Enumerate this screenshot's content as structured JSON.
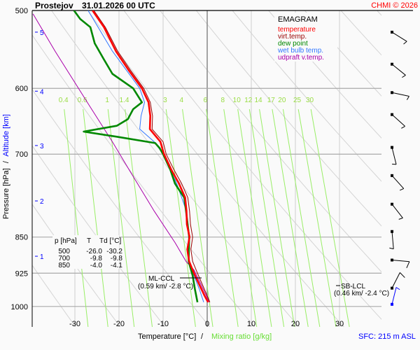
{
  "header": {
    "station": "Prostejov",
    "datetime": "31.01.2026 00 UTC",
    "copyright": "CHMI © 2026"
  },
  "legend": {
    "title": "EMAGRAM",
    "items": [
      {
        "label": "temperature",
        "color": "#ff0000"
      },
      {
        "label": "virt.temp.",
        "color": "#990000"
      },
      {
        "label": "dew point",
        "color": "#008800"
      },
      {
        "label": "wet bulb temp.",
        "color": "#3377ff"
      },
      {
        "label": "udpraft v.temp.",
        "color": "#aa00aa"
      }
    ]
  },
  "axes": {
    "ylabel_pressure": "Pressure [hPa]",
    "ylabel_sep": "/",
    "ylabel_altitude": "Altitude [km]",
    "xlabel_temp": "Temperature [°C]",
    "xlabel_sep": "/",
    "xlabel_mixing": "Mixing ratio [g/kg]",
    "sfc": "SFC: 215 m ASL"
  },
  "table": {
    "headers": [
      "p [hPa]",
      "T",
      "Td [°C]"
    ],
    "rows": [
      [
        "500",
        "-26.0",
        "-30.2"
      ],
      [
        "700",
        "-9.8",
        "-9.8"
      ],
      [
        "850",
        "-4.0",
        "-4.1"
      ]
    ]
  },
  "annotations": {
    "ml_ccl": {
      "label": "ML-CCL",
      "detail": "(0.59 km/ -2.8 °C)",
      "p": 918
    },
    "sb_lcl": {
      "label": "SB-LCL",
      "detail": "(0.46 km/ -2.4 °C)",
      "p": 937
    }
  },
  "chart_data": {
    "type": "line",
    "title": "Prostejov 31.01.2026 00 UTC",
    "xlabel": "Temperature [°C]",
    "ylabel": "Pressure [hPa]",
    "xlim": [
      -39.7,
      39.5
    ],
    "ylim": [
      500,
      1049
    ],
    "yscale": "log",
    "x_ticks": [
      "-30",
      "-20",
      "-10",
      "0",
      "10",
      "20",
      "30"
    ],
    "x_tick_values": [
      -30,
      -20,
      -10,
      0,
      10,
      20,
      30
    ],
    "y_ticks": [
      "500",
      "600",
      "700",
      "850",
      "925",
      "1000"
    ],
    "y_tick_values": [
      500,
      600,
      700,
      850,
      925,
      1000
    ],
    "altitude_ticks": [
      {
        "km": "5",
        "p": 526
      },
      {
        "km": "4",
        "p": 604
      },
      {
        "km": "3",
        "p": 686
      },
      {
        "km": "2",
        "p": 781
      },
      {
        "km": "1",
        "p": 889
      }
    ],
    "mixing_ratio_labels": [
      "0.4",
      "0.6",
      "1",
      "1.4",
      "3",
      "4",
      "6",
      "8",
      "10",
      "12",
      "14",
      "17",
      "20",
      "25",
      "30"
    ],
    "mixing_ratio_values": [
      0.4,
      0.6,
      1,
      1.4,
      3,
      4,
      6,
      8,
      10,
      12,
      14,
      17,
      20,
      25,
      30
    ],
    "grid": true,
    "legend_position": "top-right",
    "series": [
      {
        "name": "temperature",
        "color": "#ff0000",
        "points": [
          [
            500,
            -26.0
          ],
          [
            520,
            -23.4
          ],
          [
            550,
            -20.7
          ],
          [
            575,
            -17.8
          ],
          [
            600,
            -14.8
          ],
          [
            620,
            -13.3
          ],
          [
            640,
            -12.9
          ],
          [
            660,
            -13.0
          ],
          [
            680,
            -10.6
          ],
          [
            700,
            -9.8
          ],
          [
            725,
            -8.2
          ],
          [
            750,
            -6.4
          ],
          [
            775,
            -5.0
          ],
          [
            800,
            -4.7
          ],
          [
            825,
            -4.6
          ],
          [
            850,
            -4.0
          ],
          [
            875,
            -4.5
          ],
          [
            900,
            -4.1
          ],
          [
            925,
            -3.0
          ],
          [
            950,
            -1.8
          ],
          [
            975,
            -0.6
          ],
          [
            990,
            0.2
          ]
        ]
      },
      {
        "name": "virt.temp.",
        "color": "#990000",
        "points": [
          [
            500,
            -25.7
          ],
          [
            520,
            -23.1
          ],
          [
            550,
            -20.3
          ],
          [
            575,
            -17.4
          ],
          [
            600,
            -14.4
          ],
          [
            620,
            -12.9
          ],
          [
            640,
            -12.4
          ],
          [
            660,
            -12.5
          ],
          [
            680,
            -10.0
          ],
          [
            700,
            -9.3
          ],
          [
            725,
            -7.6
          ],
          [
            750,
            -5.8
          ],
          [
            775,
            -4.4
          ],
          [
            800,
            -4.0
          ],
          [
            825,
            -3.8
          ],
          [
            850,
            -3.3
          ],
          [
            875,
            -3.7
          ],
          [
            900,
            -3.3
          ],
          [
            925,
            -2.2
          ],
          [
            950,
            -1.1
          ],
          [
            975,
            0.0
          ],
          [
            990,
            0.6
          ]
        ]
      },
      {
        "name": "dew point",
        "color": "#008800",
        "points": [
          [
            500,
            -30.2
          ],
          [
            510,
            -28.8
          ],
          [
            520,
            -26.5
          ],
          [
            540,
            -25.5
          ],
          [
            560,
            -23.5
          ],
          [
            580,
            -21.5
          ],
          [
            600,
            -16.8
          ],
          [
            620,
            -14.8
          ],
          [
            630,
            -16.8
          ],
          [
            645,
            -18.0
          ],
          [
            655,
            -20.5
          ],
          [
            664,
            -28.0
          ],
          [
            672,
            -20.5
          ],
          [
            682,
            -11.8
          ],
          [
            690,
            -10.8
          ],
          [
            700,
            -10.0
          ],
          [
            725,
            -8.4
          ],
          [
            750,
            -7.3
          ],
          [
            775,
            -5.2
          ],
          [
            800,
            -4.8
          ],
          [
            850,
            -4.1
          ],
          [
            900,
            -4.2
          ],
          [
            930,
            -3.3
          ],
          [
            960,
            -2.8
          ],
          [
            990,
            -2.2
          ]
        ]
      },
      {
        "name": "wet bulb temp.",
        "color": "#3377ff",
        "points": [
          [
            500,
            -27.0
          ],
          [
            550,
            -21.5
          ],
          [
            600,
            -15.3
          ],
          [
            620,
            -14.2
          ],
          [
            640,
            -15.0
          ],
          [
            660,
            -15.3
          ],
          [
            680,
            -12.0
          ],
          [
            700,
            -10.0
          ],
          [
            750,
            -6.9
          ],
          [
            800,
            -4.7
          ],
          [
            850,
            -4.0
          ],
          [
            900,
            -4.2
          ],
          [
            925,
            -3.2
          ],
          [
            960,
            -1.8
          ],
          [
            990,
            -0.8
          ]
        ]
      },
      {
        "name": "udpraft v.temp.",
        "color": "#aa00aa",
        "points": [
          [
            504,
            -39.5
          ],
          [
            550,
            -34.5
          ],
          [
            624,
            -26.8
          ],
          [
            680,
            -21.5
          ],
          [
            731,
            -17.3
          ],
          [
            800,
            -12.0
          ],
          [
            861,
            -7.3
          ],
          [
            900,
            -4.8
          ],
          [
            918,
            -3.0
          ],
          [
            950,
            -1.4
          ],
          [
            990,
            0.5
          ]
        ]
      }
    ],
    "wind": [
      {
        "p": 526,
        "dir": 122,
        "kt": 5
      },
      {
        "p": 567,
        "dir": 129,
        "kt": 5
      },
      {
        "p": 606,
        "dir": 102,
        "kt": 5
      },
      {
        "p": 638,
        "dir": 132,
        "kt": 5
      },
      {
        "p": 689,
        "dir": 166,
        "kt": 5
      },
      {
        "p": 736,
        "dir": 138,
        "kt": 5
      },
      {
        "p": 787,
        "dir": 142,
        "kt": 5
      },
      {
        "p": 839,
        "dir": 175,
        "kt": 5
      },
      {
        "p": 897,
        "dir": 95,
        "kt": 10
      },
      {
        "p": 958,
        "dir": 27,
        "kt": 10
      },
      {
        "p": 995,
        "dir": 14,
        "kt": 5,
        "color": "#0000ff"
      }
    ]
  }
}
